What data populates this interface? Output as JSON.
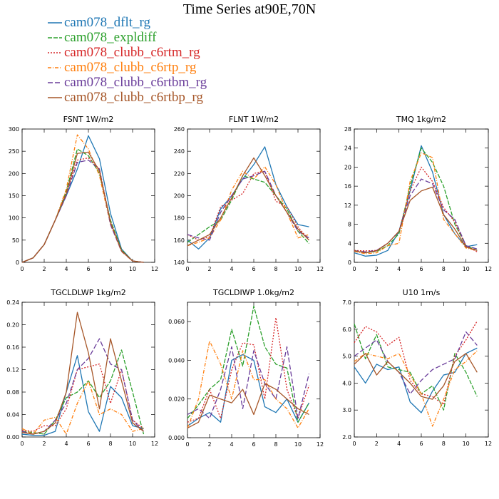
{
  "title": "Time Series at90E,70N",
  "legend": [
    {
      "label": "cam078_dflt_rg",
      "color": "#1f77b4",
      "dash": ""
    },
    {
      "label": "cam078_expldiff",
      "color": "#2ca02c",
      "dash": "6,2"
    },
    {
      "label": "cam078_clubb_c6rtm_rg",
      "color": "#d62728",
      "dash": "2,2"
    },
    {
      "label": "cam078_clubb_c6rtp_rg",
      "color": "#ff7f0e",
      "dash": "5,2,1,2"
    },
    {
      "label": "cam078_clubb_c6rtbm_rg",
      "color": "#6a3d9a",
      "dash": "7,3"
    },
    {
      "label": "cam078_clubb_c6rtbp_rg",
      "color": "#a65628",
      "dash": ""
    }
  ],
  "chart_data": [
    {
      "type": "line",
      "title": "FSNT   1W/m2",
      "xlim": [
        0,
        12
      ],
      "ylim": [
        0,
        300
      ],
      "xticks": [
        0,
        2,
        4,
        6,
        8,
        10,
        12
      ],
      "yticks": [
        0,
        50,
        100,
        150,
        200,
        250,
        300
      ],
      "ytick_labels": [
        "0",
        "50",
        "100",
        "150",
        "200",
        "250",
        "300"
      ],
      "x": [
        0,
        1,
        2,
        3,
        4,
        5,
        6,
        7,
        8,
        9,
        10,
        11
      ],
      "series": [
        {
          "values": [
            0,
            10,
            40,
            95,
            150,
            210,
            285,
            233,
            110,
            30,
            3,
            0
          ]
        },
        {
          "values": [
            0,
            10,
            40,
            95,
            160,
            255,
            240,
            200,
            95,
            28,
            3,
            0
          ]
        },
        {
          "values": [
            0,
            10,
            40,
            95,
            155,
            230,
            235,
            210,
            90,
            26,
            3,
            0
          ]
        },
        {
          "values": [
            0,
            10,
            40,
            95,
            165,
            287,
            255,
            195,
            85,
            24,
            3,
            0
          ]
        },
        {
          "values": [
            0,
            10,
            40,
            95,
            150,
            225,
            230,
            210,
            85,
            25,
            3,
            0
          ]
        },
        {
          "values": [
            0,
            10,
            40,
            95,
            155,
            245,
            248,
            205,
            90,
            26,
            3,
            0
          ]
        }
      ]
    },
    {
      "type": "line",
      "title": "FLNT   1W/m2",
      "xlim": [
        0,
        12
      ],
      "ylim": [
        140,
        260
      ],
      "xticks": [
        0,
        2,
        4,
        6,
        8,
        10,
        12
      ],
      "yticks": [
        140,
        160,
        180,
        200,
        220,
        240,
        260
      ],
      "ytick_labels": [
        "140",
        "160",
        "180",
        "200",
        "220",
        "240",
        "260"
      ],
      "x": [
        0,
        1,
        2,
        3,
        4,
        5,
        6,
        7,
        8,
        9,
        10,
        11
      ],
      "series": [
        {
          "values": [
            160,
            152,
            162,
            188,
            200,
            215,
            228,
            244,
            210,
            190,
            174,
            172
          ]
        },
        {
          "values": [
            158,
            165,
            172,
            178,
            196,
            218,
            215,
            212,
            200,
            188,
            168,
            157
          ]
        },
        {
          "values": [
            165,
            160,
            163,
            190,
            196,
            202,
            220,
            222,
            195,
            190,
            172,
            160
          ]
        },
        {
          "values": [
            155,
            158,
            162,
            178,
            205,
            222,
            215,
            226,
            210,
            185,
            162,
            165
          ]
        },
        {
          "values": [
            165,
            162,
            160,
            185,
            200,
            215,
            218,
            222,
            200,
            185,
            168,
            162
          ]
        },
        {
          "values": [
            155,
            160,
            165,
            180,
            198,
            218,
            234,
            218,
            200,
            185,
            170,
            160
          ]
        }
      ]
    },
    {
      "type": "line",
      "title": "TMQ   1kg/m2",
      "xlim": [
        0,
        12
      ],
      "ylim": [
        0,
        28
      ],
      "xticks": [
        0,
        2,
        4,
        6,
        8,
        10,
        12
      ],
      "yticks": [
        0,
        4,
        8,
        12,
        16,
        20,
        24,
        28
      ],
      "ytick_labels": [
        "0",
        "4",
        "8",
        "12",
        "16",
        "20",
        "24",
        "28"
      ],
      "x": [
        0,
        1,
        2,
        3,
        4,
        5,
        6,
        7,
        8,
        9,
        10,
        11
      ],
      "series": [
        {
          "values": [
            2.0,
            1.3,
            1.5,
            2.5,
            6.5,
            15.0,
            24.5,
            19.0,
            10.0,
            6.0,
            3.3,
            3.7
          ]
        },
        {
          "values": [
            2.5,
            2.0,
            2.3,
            3.5,
            6.0,
            16.0,
            24.0,
            21.0,
            16.0,
            8.0,
            3.5,
            2.5
          ]
        },
        {
          "values": [
            2.5,
            2.4,
            2.5,
            4.0,
            6.5,
            15.0,
            20.0,
            17.0,
            11.5,
            8.5,
            3.5,
            2.2
          ]
        },
        {
          "values": [
            2.3,
            1.8,
            2.0,
            3.5,
            4.0,
            17.0,
            23.0,
            22.0,
            9.0,
            6.0,
            3.0,
            2.5
          ]
        },
        {
          "values": [
            2.4,
            2.2,
            2.5,
            4.0,
            6.5,
            14.0,
            17.5,
            16.5,
            11.0,
            9.0,
            3.5,
            2.8
          ]
        },
        {
          "values": [
            2.4,
            2.0,
            2.4,
            4.0,
            6.5,
            13.0,
            15.0,
            15.8,
            10.0,
            7.0,
            3.2,
            2.5
          ]
        }
      ]
    },
    {
      "type": "line",
      "title": "TGCLDLWP   1kg/m2",
      "xlim": [
        0,
        12
      ],
      "ylim": [
        0,
        0.24
      ],
      "xticks": [
        0,
        2,
        4,
        6,
        8,
        10,
        12
      ],
      "yticks": [
        0,
        0.04,
        0.08,
        0.12,
        0.16,
        0.2,
        0.24
      ],
      "ytick_labels": [
        "0.00",
        "0.04",
        "0.08",
        "0.12",
        "0.16",
        "0.20",
        "0.24"
      ],
      "x": [
        0,
        1,
        2,
        3,
        4,
        5,
        6,
        7,
        8,
        9,
        10,
        11
      ],
      "series": [
        {
          "values": [
            0.005,
            0.003,
            0.003,
            0.01,
            0.08,
            0.145,
            0.045,
            0.01,
            0.09,
            0.07,
            0.02,
            0.015
          ]
        },
        {
          "values": [
            0.01,
            0.008,
            0.005,
            0.03,
            0.07,
            0.08,
            0.1,
            0.07,
            0.1,
            0.155,
            0.08,
            0.005
          ]
        },
        {
          "values": [
            0.012,
            0.01,
            0.02,
            0.02,
            0.05,
            0.12,
            0.125,
            0.13,
            0.06,
            0.12,
            0.03,
            0.015
          ]
        },
        {
          "values": [
            0.015,
            0.005,
            0.03,
            0.035,
            0.005,
            0.06,
            0.1,
            0.04,
            0.05,
            0.04,
            0.01,
            0.015
          ]
        },
        {
          "values": [
            0.01,
            0.005,
            0.01,
            0.03,
            0.06,
            0.12,
            0.14,
            0.175,
            0.13,
            0.12,
            0.03,
            0.01
          ]
        },
        {
          "values": [
            0.008,
            0.005,
            0.01,
            0.025,
            0.08,
            0.222,
            0.15,
            0.05,
            0.175,
            0.1,
            0.025,
            0.01
          ]
        }
      ]
    },
    {
      "type": "line",
      "title": "TGCLDIWP   1.0kg/m2",
      "xlim": [
        0,
        12
      ],
      "ylim": [
        0,
        0.07
      ],
      "xticks": [
        0,
        2,
        4,
        6,
        8,
        10,
        12
      ],
      "yticks": [
        0,
        0.02,
        0.04,
        0.06
      ],
      "ytick_labels": [
        "0.000",
        "0.020",
        "0.040",
        "0.060"
      ],
      "x": [
        0,
        1,
        2,
        3,
        4,
        5,
        6,
        7,
        8,
        9,
        10,
        11
      ],
      "series": [
        {
          "values": [
            0.006,
            0.01,
            0.013,
            0.008,
            0.04,
            0.043,
            0.04,
            0.016,
            0.013,
            0.02,
            0.008,
            0.018
          ]
        },
        {
          "values": [
            0.01,
            0.017,
            0.025,
            0.03,
            0.056,
            0.037,
            0.068,
            0.047,
            0.038,
            0.036,
            0.008,
            0.018
          ]
        },
        {
          "values": [
            0.008,
            0.01,
            0.025,
            0.01,
            0.035,
            0.049,
            0.048,
            0.02,
            0.062,
            0.025,
            0.01,
            0.027
          ]
        },
        {
          "values": [
            0.005,
            0.02,
            0.05,
            0.038,
            0.02,
            0.045,
            0.03,
            0.03,
            0.02,
            0.015,
            0.005,
            0.015
          ]
        },
        {
          "values": [
            0.012,
            0.015,
            0.01,
            0.025,
            0.047,
            0.015,
            0.045,
            0.028,
            0.02,
            0.047,
            0.01,
            0.033
          ]
        },
        {
          "values": [
            0.005,
            0.008,
            0.022,
            0.02,
            0.018,
            0.025,
            0.012,
            0.028,
            0.025,
            0.02,
            0.015,
            0.012
          ]
        }
      ]
    },
    {
      "type": "line",
      "title": "U10   1m/s",
      "xlim": [
        0,
        12
      ],
      "ylim": [
        2,
        7
      ],
      "xticks": [
        0,
        2,
        4,
        6,
        8,
        10,
        12
      ],
      "yticks": [
        2,
        3,
        4,
        5,
        6,
        7
      ],
      "ytick_labels": [
        "2.0",
        "3.0",
        "4.0",
        "5.0",
        "6.0",
        "7.0"
      ],
      "x": [
        0,
        1,
        2,
        3,
        4,
        5,
        6,
        7,
        8,
        9,
        10,
        11
      ],
      "series": [
        {
          "values": [
            4.6,
            4.0,
            4.7,
            4.5,
            4.6,
            3.3,
            2.9,
            3.7,
            4.3,
            4.4,
            5.1,
            5.3
          ]
        },
        {
          "values": [
            6.2,
            4.9,
            5.8,
            4.6,
            4.5,
            4.4,
            3.6,
            3.9,
            3.0,
            5.1,
            4.4,
            3.5
          ]
        },
        {
          "values": [
            5.5,
            6.1,
            5.9,
            5.4,
            5.7,
            4.1,
            3.6,
            3.5,
            3.2,
            5.0,
            5.6,
            6.3
          ]
        },
        {
          "values": [
            4.8,
            5.1,
            5.0,
            4.9,
            5.1,
            4.3,
            3.6,
            2.4,
            3.4,
            4.5,
            4.8,
            5.2
          ]
        },
        {
          "values": [
            5.0,
            5.3,
            5.6,
            4.8,
            4.4,
            3.6,
            4.1,
            4.5,
            4.7,
            4.9,
            5.9,
            5.4
          ]
        },
        {
          "values": [
            4.7,
            5.1,
            4.3,
            4.8,
            4.4,
            4.0,
            3.5,
            3.4,
            3.9,
            4.8,
            5.1,
            4.4
          ]
        }
      ]
    }
  ]
}
